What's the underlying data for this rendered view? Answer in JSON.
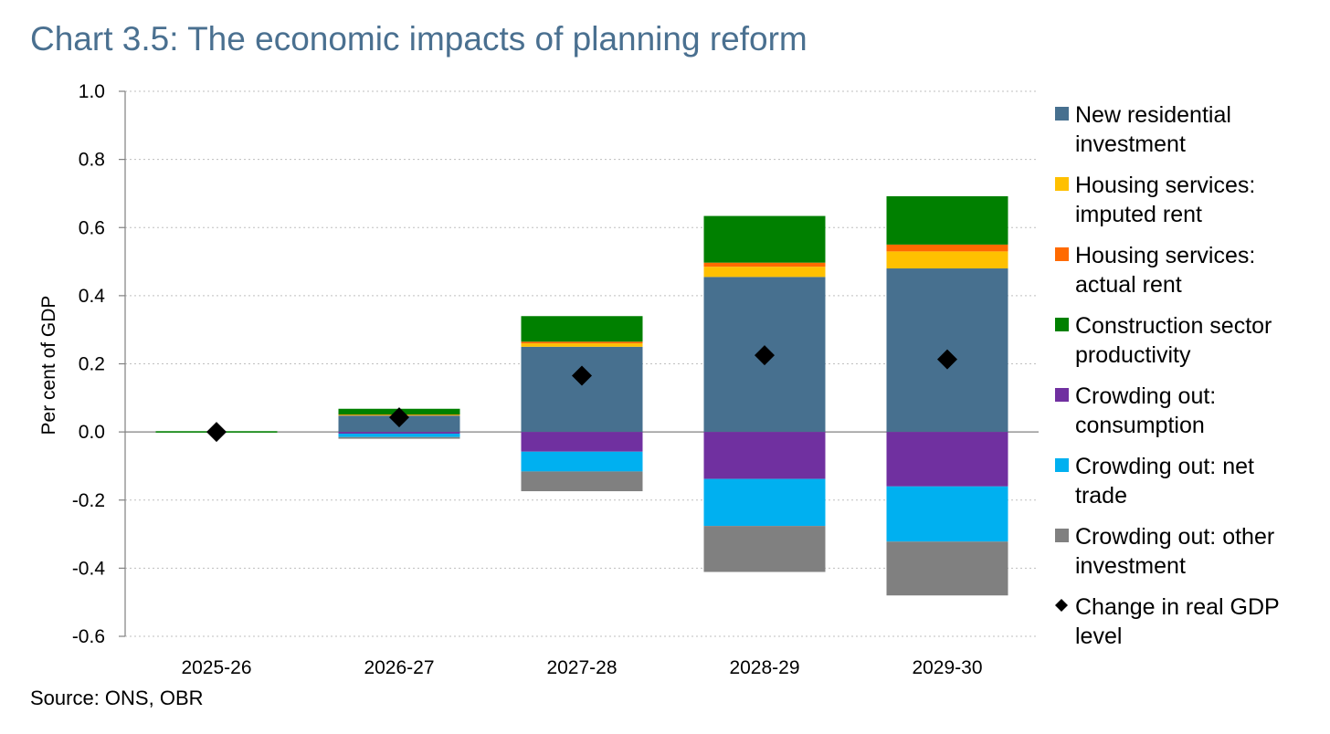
{
  "title": "Chart 3.5: The economic impacts of planning reform",
  "source": "Source: ONS, OBR",
  "chart_data": {
    "type": "bar",
    "stacked": true,
    "title": "Chart 3.5: The economic impacts of planning reform",
    "ylabel": "Per cent of GDP",
    "xlabel": "",
    "ylim": [
      -0.6,
      1.0
    ],
    "yticks": [
      "1.0",
      "0.8",
      "0.6",
      "0.4",
      "0.2",
      "0.0",
      "-0.2",
      "-0.4",
      "-0.6"
    ],
    "ytick_values": [
      1.0,
      0.8,
      0.6,
      0.4,
      0.2,
      0.0,
      -0.2,
      -0.4,
      -0.6
    ],
    "grid": "horizontal dotted",
    "legend_position": "right",
    "categories": [
      "2025-26",
      "2026-27",
      "2027-28",
      "2028-29",
      "2029-30"
    ],
    "series": [
      {
        "name": "New residential investment",
        "legend_lines": [
          "New residential",
          "investment"
        ],
        "color": "#47708f",
        "values": [
          0.0,
          0.048,
          0.25,
          0.455,
          0.48
        ]
      },
      {
        "name": "Housing services: imputed rent",
        "legend_lines": [
          "Housing services:",
          "imputed rent"
        ],
        "color": "#ffc000",
        "values": [
          0.0,
          0.002,
          0.01,
          0.03,
          0.05
        ]
      },
      {
        "name": "Housing services: actual rent",
        "legend_lines": [
          "Housing services:",
          "actual rent"
        ],
        "color": "#ff6a00",
        "values": [
          0.0,
          0.001,
          0.005,
          0.012,
          0.02
        ]
      },
      {
        "name": "Construction sector productivity",
        "legend_lines": [
          "Construction sector",
          "productivity"
        ],
        "color": "#008000",
        "values": [
          0.002,
          0.017,
          0.075,
          0.137,
          0.142
        ]
      },
      {
        "name": "Crowding out: consumption",
        "legend_lines": [
          "Crowding out:",
          "consumption"
        ],
        "color": "#7030a0",
        "values": [
          0.0,
          -0.005,
          -0.058,
          -0.138,
          -0.16
        ]
      },
      {
        "name": "Crowding out: net trade",
        "legend_lines": [
          "Crowding out: net",
          "trade"
        ],
        "color": "#00b0f0",
        "values": [
          0.0,
          -0.01,
          -0.058,
          -0.138,
          -0.162
        ]
      },
      {
        "name": "Crowding out: other investment",
        "legend_lines": [
          "Crowding out: other",
          "investment"
        ],
        "color": "#808080",
        "values": [
          0.0,
          -0.005,
          -0.058,
          -0.135,
          -0.158
        ]
      }
    ],
    "markers": {
      "name": "Change in real GDP level",
      "legend_lines": [
        "Change in real GDP",
        "level"
      ],
      "color": "#000000",
      "shape": "diamond",
      "values": [
        0.0,
        0.043,
        0.165,
        0.225,
        0.213
      ]
    }
  }
}
